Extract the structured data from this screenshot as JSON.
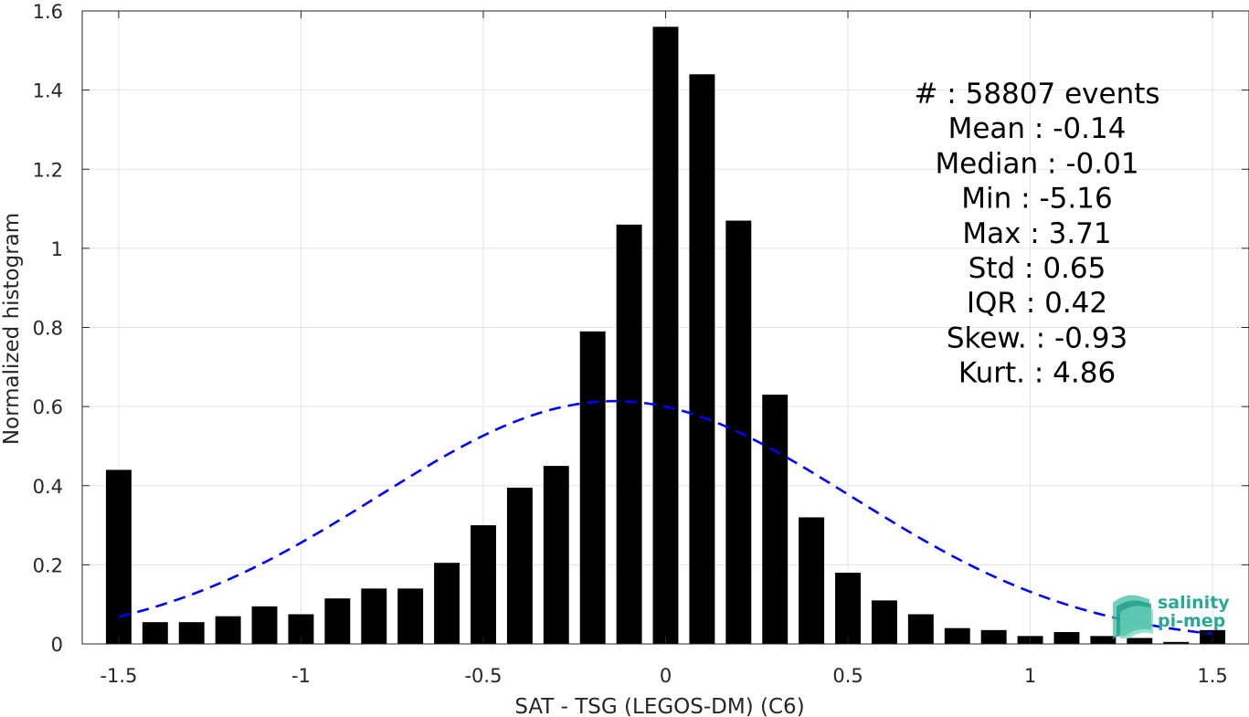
{
  "chart_data": {
    "type": "bar",
    "xlabel": "SAT - TSG (LEGOS-DM) (C6)",
    "ylabel": "Normalized histogram",
    "xlim": [
      -1.6,
      1.6
    ],
    "ylim": [
      0,
      1.6
    ],
    "x_ticks": [
      -1.5,
      -1,
      -0.5,
      0,
      0.5,
      1,
      1.5
    ],
    "x_tick_labels": [
      "-1.5",
      "-1",
      "-0.5",
      "0",
      "0.5",
      "1",
      "1.5"
    ],
    "y_ticks": [
      0,
      0.2,
      0.4,
      0.6,
      0.8,
      1,
      1.2,
      1.4,
      1.6
    ],
    "y_tick_labels": [
      "0",
      "0.2",
      "0.4",
      "0.6",
      "0.8",
      "1",
      "1.2",
      "1.4",
      "1.6"
    ],
    "grid": true,
    "bar_color": "#000000",
    "bins": {
      "centers": [
        -1.5,
        -1.4,
        -1.3,
        -1.2,
        -1.1,
        -1.0,
        -0.9,
        -0.8,
        -0.7,
        -0.6,
        -0.5,
        -0.4,
        -0.3,
        -0.2,
        -0.1,
        0.0,
        0.1,
        0.2,
        0.3,
        0.4,
        0.5,
        0.6,
        0.7,
        0.8,
        0.9,
        1.0,
        1.1,
        1.2,
        1.3,
        1.4,
        1.5
      ],
      "values": [
        0.44,
        0.055,
        0.055,
        0.07,
        0.095,
        0.075,
        0.115,
        0.14,
        0.14,
        0.205,
        0.3,
        0.395,
        0.45,
        0.79,
        1.06,
        1.56,
        1.44,
        1.07,
        0.63,
        0.32,
        0.18,
        0.11,
        0.075,
        0.04,
        0.035,
        0.02,
        0.03,
        0.02,
        0.015,
        0.005,
        0.035
      ]
    },
    "fit_curve": {
      "type": "normal",
      "mean": -0.14,
      "std": 0.65,
      "x_range": [
        -1.5,
        1.5
      ],
      "color": "#0000ff",
      "style": "dashed"
    }
  },
  "stats": [
    {
      "label": "#",
      "sep": ":",
      "value": "58807 events"
    },
    {
      "label": "Mean",
      "sep": ":",
      "value": "-0.14"
    },
    {
      "label": "Median",
      "sep": ":",
      "value": "-0.01"
    },
    {
      "label": "Min",
      "sep": ":",
      "value": "-5.16"
    },
    {
      "label": "Max",
      "sep": ":",
      "value": "3.71"
    },
    {
      "label": "Std",
      "sep": ":",
      "value": "0.65"
    },
    {
      "label": "IQR",
      "sep": ":",
      "value": "0.42"
    },
    {
      "label": "Skew.",
      "sep": ":",
      "value": "-0.93"
    },
    {
      "label": "Kurt.",
      "sep": ":",
      "value": "4.86"
    }
  ],
  "logo": {
    "line1": "salinity",
    "line2": "pi-mep",
    "color": "#2aa896"
  }
}
